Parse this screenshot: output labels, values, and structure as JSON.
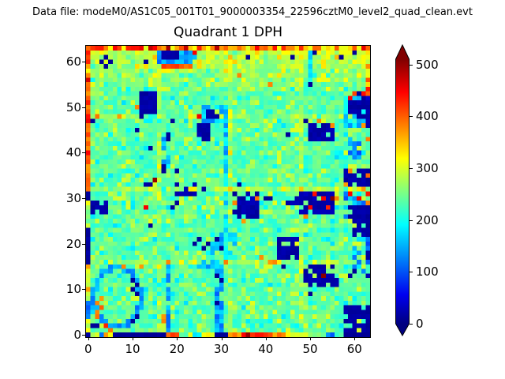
{
  "header": {
    "datafile": "Data file: modeM0/AS1C05_001T01_9000003354_22596cztM0_level2_quad_clean.evt"
  },
  "chart_data": {
    "type": "heatmap",
    "title": "Quadrant 1 DPH",
    "xlabel": "",
    "ylabel": "",
    "grid": 64,
    "colormap": "jet",
    "vmin": 0,
    "vmax": 510,
    "xticks": [
      0,
      10,
      20,
      30,
      40,
      50,
      60
    ],
    "yticks": [
      0,
      10,
      20,
      30,
      40,
      50,
      60
    ],
    "xlim": [
      -0.5,
      63.5
    ],
    "ylim": [
      -0.5,
      63.5
    ],
    "colorbar": {
      "ticks": [
        0,
        100,
        200,
        300,
        400,
        500
      ],
      "extend": "both",
      "over_color": "#800000",
      "under_color": "#000080"
    },
    "colors": {
      "background": "#ffffff",
      "spine": "#000000",
      "jet_stops": [
        [
          0.0,
          "#000080"
        ],
        [
          0.11,
          "#0000f0"
        ],
        [
          0.34,
          "#00dcff"
        ],
        [
          0.375,
          "#00ffff"
        ],
        [
          0.5,
          "#80ff80"
        ],
        [
          0.625,
          "#ffff00"
        ],
        [
          0.75,
          "#ff8000"
        ],
        [
          0.875,
          "#ff0000"
        ],
        [
          1.0,
          "#800000"
        ]
      ]
    },
    "field": {
      "seed": 1337,
      "base": 235,
      "noise": 26,
      "yellow_chance": 0.14,
      "yellow_lo": 268,
      "yellow_hi": 305,
      "cyan_chance": 0.05,
      "cyan_lo": 175,
      "cyan_hi": 205,
      "top_band_start": 53,
      "top_band_slope": 6,
      "top_band_max": 60,
      "boundaries": {
        "cols": [
          16,
          32,
          48
        ],
        "rows": [
          16,
          32,
          48
        ],
        "boost": 28
      }
    },
    "edges": {
      "left_col": [
        15,
        300,
        290,
        310,
        140,
        120,
        110,
        130,
        290,
        300,
        370,
        290,
        310,
        290,
        300,
        380,
        12,
        15,
        20,
        10,
        15,
        20,
        12,
        15,
        300,
        240,
        260,
        250,
        290,
        300,
        10,
        15,
        390,
        380,
        400,
        370,
        390,
        380,
        400,
        390,
        430,
        380,
        390,
        370,
        400,
        380,
        390,
        450,
        440,
        400,
        380,
        430,
        390,
        370,
        400,
        380,
        450,
        390,
        310,
        380,
        440,
        390,
        450,
        380
      ],
      "right_col": [
        10,
        15,
        10,
        15,
        20,
        10,
        15,
        240,
        230,
        220,
        230,
        240,
        230,
        25,
        220,
        230,
        110,
        15,
        20,
        130,
        100,
        120,
        15,
        20,
        10,
        15,
        10,
        20,
        15,
        380,
        240,
        450,
        240,
        15,
        10,
        380,
        15,
        260,
        230,
        240,
        250,
        230,
        240,
        370,
        230,
        240,
        25,
        30,
        20,
        25,
        15,
        20,
        40,
        380,
        430,
        320,
        390,
        310,
        300,
        360,
        290,
        310,
        350,
        400
      ],
      "bottom_row": [
        15,
        290,
        300,
        120,
        380,
        300,
        15,
        10,
        12,
        15,
        10,
        12,
        15,
        10,
        12,
        10,
        15,
        12,
        400,
        420,
        430,
        250,
        240,
        300,
        180,
        190,
        300,
        310,
        290,
        15,
        10,
        12,
        370,
        390,
        380,
        450,
        470,
        440,
        460,
        450,
        430,
        390,
        380,
        400,
        370,
        310,
        300,
        290,
        310,
        300,
        260,
        250,
        270,
        240,
        130,
        110,
        220,
        230,
        10,
        12,
        10,
        15,
        10,
        12
      ],
      "top_row": {
        "lo": 330,
        "hi": 490,
        "yellow_chance": 0.15,
        "yellow": 300
      }
    },
    "rects": [
      [
        16,
        24,
        60,
        62,
        110,
        60,
        0.15
      ],
      [
        17,
        20,
        61,
        62,
        14,
        12,
        0
      ],
      [
        17,
        23,
        59,
        59,
        380,
        50,
        0.1
      ],
      [
        12,
        15,
        49,
        53,
        12,
        16,
        0.08
      ],
      [
        13,
        17,
        47,
        48,
        170,
        40,
        0.45
      ],
      [
        26,
        31,
        47,
        50,
        120,
        70,
        0.2
      ],
      [
        27,
        29,
        48,
        49,
        14,
        12,
        0.1
      ],
      [
        25,
        27,
        43,
        46,
        12,
        16,
        0.1
      ],
      [
        17,
        18,
        36,
        43,
        130,
        70,
        0.3
      ],
      [
        50,
        55,
        43,
        46,
        12,
        18,
        0.12
      ],
      [
        58,
        62,
        46,
        52,
        130,
        70,
        0.3
      ],
      [
        59,
        62,
        48,
        51,
        13,
        14,
        0.12
      ],
      [
        60,
        63,
        53,
        53,
        385,
        40,
        0.2
      ],
      [
        50,
        50,
        55,
        62,
        160,
        45,
        0.2
      ],
      [
        31,
        31,
        17,
        50,
        125,
        85,
        0.3
      ],
      [
        33,
        38,
        26,
        31,
        12,
        18,
        0.15
      ],
      [
        48,
        55,
        27,
        31,
        14,
        20,
        0.35
      ],
      [
        58,
        62,
        25,
        31,
        100,
        80,
        0.35
      ],
      [
        59,
        62,
        26,
        28,
        12,
        14,
        0.15
      ],
      [
        43,
        47,
        17,
        21,
        12,
        16,
        0.1
      ],
      [
        49,
        56,
        11,
        15,
        13,
        18,
        0.3
      ],
      [
        60,
        63,
        22,
        25,
        12,
        16,
        0.2
      ],
      [
        60,
        63,
        14,
        21,
        120,
        80,
        0.5
      ],
      [
        58,
        62,
        1,
        6,
        12,
        16,
        0.25
      ],
      [
        18,
        18,
        1,
        15,
        110,
        65,
        0.2
      ],
      [
        29,
        30,
        1,
        14,
        110,
        65,
        0.25
      ],
      [
        24,
        30,
        15,
        15,
        125,
        60,
        0.25
      ],
      [
        26,
        29,
        16,
        16,
        140,
        60,
        0.4
      ],
      [
        1,
        4,
        27,
        29,
        12,
        16,
        0.3
      ],
      [
        28,
        33,
        17,
        22,
        130,
        80,
        0.5
      ],
      [
        4,
        6,
        8,
        9,
        190,
        30,
        0.3
      ],
      [
        56,
        57,
        39,
        40,
        170,
        30,
        0.2
      ],
      [
        59,
        61,
        39,
        43,
        90,
        80,
        0.3
      ],
      [
        20,
        26,
        31,
        33,
        13,
        18,
        0.4
      ],
      [
        13,
        16,
        32,
        33,
        13,
        16,
        0.35
      ],
      [
        58,
        63,
        33,
        36,
        12,
        16,
        0.15
      ],
      [
        44,
        47,
        29,
        30,
        13,
        16,
        0.25
      ],
      [
        59,
        60,
        6,
        7,
        12,
        14,
        0.2
      ]
    ],
    "ring": {
      "cx": 6.5,
      "cy": 8.2,
      "rx": 5.3,
      "ry": 6.6,
      "value": 115,
      "jitter": 55,
      "hole": 0.08
    },
    "singles": [
      [
        3,
        60,
        12
      ],
      [
        4,
        61,
        12
      ],
      [
        5,
        60,
        12
      ],
      [
        4,
        59,
        12
      ],
      [
        13,
        60,
        12
      ],
      [
        36,
        61,
        12
      ],
      [
        46,
        61,
        12
      ],
      [
        51,
        62,
        12
      ],
      [
        57,
        61,
        12
      ],
      [
        60,
        62,
        12
      ],
      [
        12,
        48,
        12
      ],
      [
        1,
        47,
        12
      ],
      [
        19,
        47,
        12
      ],
      [
        11,
        45,
        12
      ],
      [
        14,
        41,
        12
      ],
      [
        20,
        36,
        12
      ],
      [
        45,
        44,
        12
      ],
      [
        49,
        47,
        12
      ],
      [
        50,
        55,
        12
      ],
      [
        34,
        33,
        12
      ],
      [
        14,
        24,
        12
      ],
      [
        24,
        20,
        12
      ],
      [
        25,
        21,
        12
      ],
      [
        26,
        19,
        12
      ],
      [
        27,
        20,
        12
      ],
      [
        19,
        28,
        12
      ],
      [
        20,
        29,
        12
      ],
      [
        29,
        21,
        12
      ],
      [
        30,
        19,
        12
      ],
      [
        44,
        15,
        12
      ],
      [
        50,
        9,
        12
      ],
      [
        59,
        13,
        12
      ],
      [
        60,
        14,
        12
      ],
      [
        40,
        30,
        12
      ],
      [
        41,
        30,
        12
      ],
      [
        10,
        3,
        12
      ],
      [
        11,
        4,
        12
      ],
      [
        11,
        9,
        12
      ],
      [
        10,
        10,
        12
      ],
      [
        11,
        11,
        12
      ],
      [
        10,
        12,
        12
      ],
      [
        1,
        2,
        12
      ],
      [
        2,
        2,
        12
      ],
      [
        18,
        44,
        12
      ],
      [
        18,
        43,
        12
      ],
      [
        17,
        37,
        12
      ],
      [
        17,
        36,
        12
      ],
      [
        29,
        13,
        12
      ],
      [
        30,
        12,
        12
      ],
      [
        29,
        7,
        12
      ],
      [
        61,
        53,
        15
      ],
      [
        62,
        52,
        12
      ],
      [
        24,
        62,
        450
      ],
      [
        11,
        50,
        380
      ],
      [
        25,
        48,
        450
      ],
      [
        52,
        47,
        380
      ],
      [
        55,
        46,
        380
      ],
      [
        59,
        52,
        450
      ],
      [
        62,
        53,
        440
      ],
      [
        62,
        46,
        370
      ],
      [
        33,
        29,
        380
      ],
      [
        35,
        25,
        370
      ],
      [
        38,
        30,
        390
      ],
      [
        50,
        28,
        450
      ],
      [
        51,
        31,
        440
      ],
      [
        54,
        28,
        430
      ],
      [
        55,
        30,
        505
      ],
      [
        49,
        26,
        380
      ],
      [
        53,
        30,
        450
      ],
      [
        56,
        30,
        380
      ],
      [
        59,
        31,
        450
      ],
      [
        61,
        30,
        450
      ],
      [
        47,
        20,
        310
      ],
      [
        42,
        16,
        380
      ],
      [
        39,
        17,
        375
      ],
      [
        53,
        13,
        505
      ],
      [
        13,
        28,
        450
      ],
      [
        15,
        34,
        500
      ],
      [
        34,
        57,
        380
      ],
      [
        41,
        55,
        380
      ],
      [
        31,
        16,
        385
      ],
      [
        41,
        16,
        370
      ],
      [
        8,
        15,
        380
      ],
      [
        12,
        15,
        370
      ],
      [
        18,
        16,
        380
      ],
      [
        17,
        3,
        380
      ],
      [
        17,
        4,
        370
      ],
      [
        2,
        4,
        390
      ],
      [
        2,
        5,
        380
      ],
      [
        3,
        6,
        400
      ],
      [
        2,
        7,
        380
      ],
      [
        3,
        8,
        370
      ],
      [
        4,
        2,
        430
      ],
      [
        5,
        1,
        390
      ],
      [
        2,
        48,
        390
      ],
      [
        7,
        48,
        370
      ],
      [
        58,
        33,
        370
      ],
      [
        59,
        36,
        380
      ],
      [
        62,
        32,
        370
      ],
      [
        21,
        39,
        185
      ],
      [
        19,
        9,
        180
      ],
      [
        15,
        12,
        185
      ],
      [
        16,
        11,
        190
      ],
      [
        55,
        33,
        195
      ],
      [
        56,
        34,
        190
      ]
    ]
  }
}
